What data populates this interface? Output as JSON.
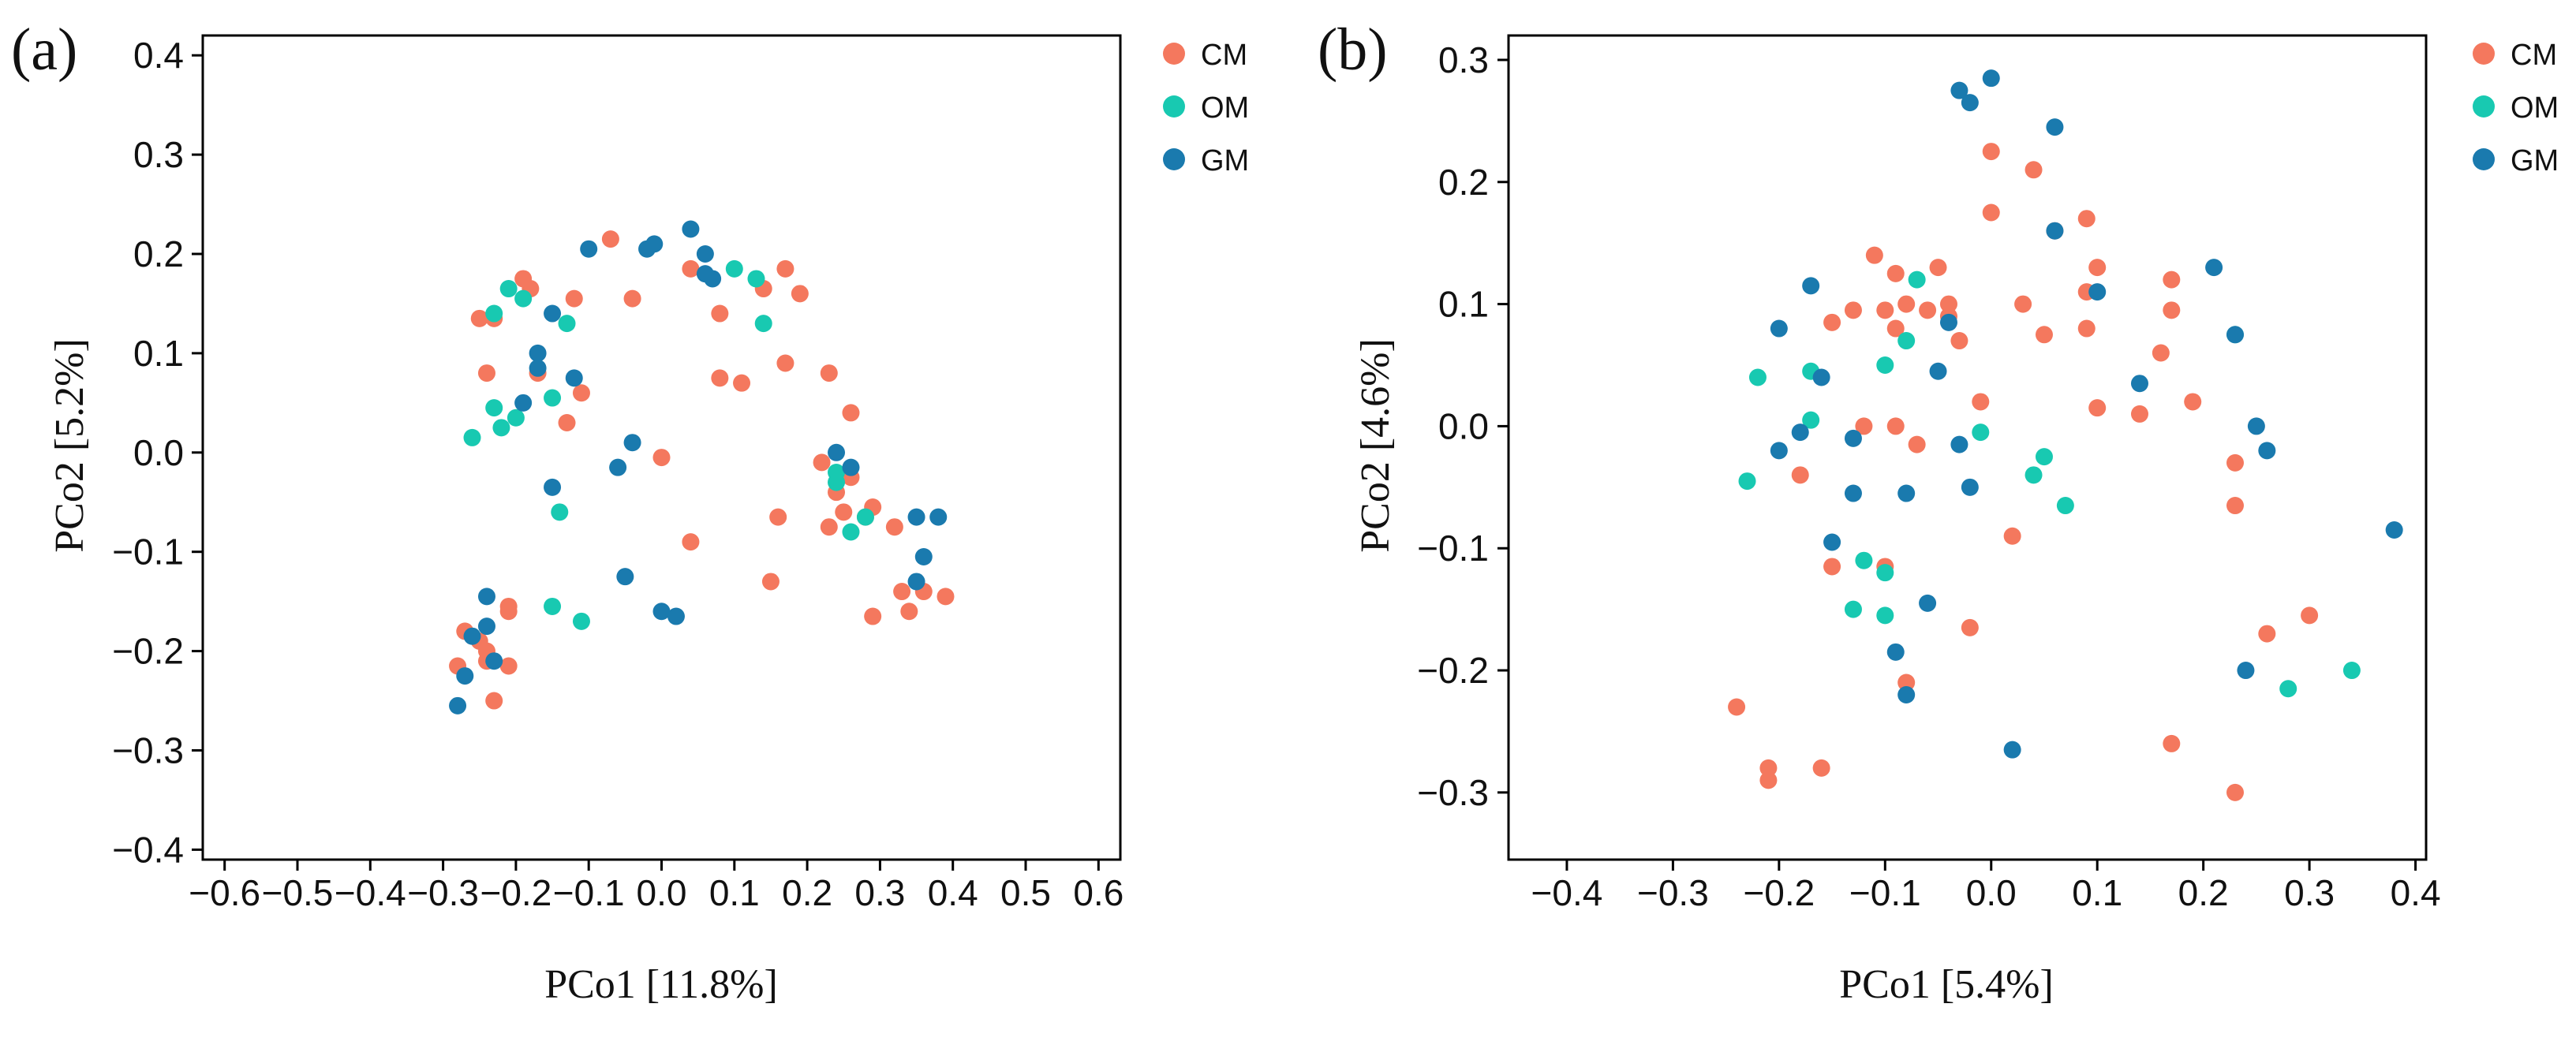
{
  "colors": {
    "CM": "#F4785E",
    "OM": "#18C9B1",
    "GM": "#1A7AAE"
  },
  "legend": [
    {
      "name": "CM",
      "color": "#F4785E"
    },
    {
      "name": "OM",
      "color": "#18C9B1"
    },
    {
      "name": "GM",
      "color": "#1A7AAE"
    }
  ],
  "chart_data": [
    {
      "type": "scatter",
      "panel_label": "(a)",
      "xlabel": "PCo1 [11.8%]",
      "ylabel": "PCo2 [5.2%]",
      "xlim": [
        -0.63,
        0.63
      ],
      "ylim": [
        -0.41,
        0.42
      ],
      "xticks": [
        -0.6,
        -0.5,
        -0.4,
        -0.3,
        -0.2,
        -0.1,
        0.0,
        0.1,
        0.2,
        0.3,
        0.4,
        0.5,
        0.6
      ],
      "xtick_labels": [
        "−0.6",
        "−0.5",
        "−0.4",
        "−0.3",
        "−0.2",
        "−0.1",
        "0.0",
        "0.1",
        "0.2",
        "0.3",
        "0.4",
        "0.5",
        "0.6"
      ],
      "yticks": [
        -0.4,
        -0.3,
        -0.2,
        -0.1,
        0.0,
        0.1,
        0.2,
        0.3,
        0.4
      ],
      "ytick_labels": [
        "−0.4",
        "−0.3",
        "−0.2",
        "−0.1",
        "0.0",
        "0.1",
        "0.2",
        "0.3",
        "0.4"
      ],
      "series": [
        {
          "name": "CM",
          "points": [
            [
              -0.07,
              0.215
            ],
            [
              -0.04,
              0.155
            ],
            [
              -0.12,
              0.155
            ],
            [
              -0.19,
              0.175
            ],
            [
              -0.18,
              0.165
            ],
            [
              -0.23,
              0.135
            ],
            [
              -0.25,
              0.135
            ],
            [
              -0.24,
              0.08
            ],
            [
              -0.17,
              0.08
            ],
            [
              -0.11,
              0.06
            ],
            [
              -0.13,
              0.03
            ],
            [
              0.04,
              0.185
            ],
            [
              0.08,
              0.14
            ],
            [
              0.14,
              0.165
            ],
            [
              0.17,
              0.185
            ],
            [
              0.19,
              0.16
            ],
            [
              0.08,
              0.075
            ],
            [
              0.11,
              0.07
            ],
            [
              0.17,
              0.09
            ],
            [
              0.23,
              0.08
            ],
            [
              0.26,
              0.04
            ],
            [
              0.22,
              -0.01
            ],
            [
              0.0,
              -0.005
            ],
            [
              0.24,
              -0.04
            ],
            [
              0.25,
              -0.06
            ],
            [
              0.26,
              -0.025
            ],
            [
              0.28,
              -0.065
            ],
            [
              0.29,
              -0.055
            ],
            [
              0.23,
              -0.075
            ],
            [
              0.32,
              -0.075
            ],
            [
              0.16,
              -0.065
            ],
            [
              0.04,
              -0.09
            ],
            [
              0.15,
              -0.13
            ],
            [
              0.33,
              -0.14
            ],
            [
              0.36,
              -0.14
            ],
            [
              0.39,
              -0.145
            ],
            [
              0.34,
              -0.16
            ],
            [
              0.29,
              -0.165
            ],
            [
              -0.27,
              -0.18
            ],
            [
              -0.25,
              -0.19
            ],
            [
              -0.24,
              -0.2
            ],
            [
              -0.24,
              -0.21
            ],
            [
              -0.21,
              -0.16
            ],
            [
              -0.21,
              -0.155
            ],
            [
              -0.21,
              -0.215
            ],
            [
              -0.28,
              -0.215
            ],
            [
              -0.23,
              -0.25
            ]
          ]
        },
        {
          "name": "OM",
          "points": [
            [
              -0.23,
              0.14
            ],
            [
              -0.21,
              0.165
            ],
            [
              -0.19,
              0.155
            ],
            [
              -0.13,
              0.13
            ],
            [
              0.1,
              0.185
            ],
            [
              0.13,
              0.175
            ],
            [
              0.14,
              0.13
            ],
            [
              -0.23,
              0.045
            ],
            [
              -0.2,
              0.035
            ],
            [
              -0.22,
              0.025
            ],
            [
              -0.26,
              0.015
            ],
            [
              -0.15,
              0.055
            ],
            [
              -0.14,
              -0.06
            ],
            [
              0.24,
              -0.02
            ],
            [
              0.24,
              -0.03
            ],
            [
              0.26,
              -0.08
            ],
            [
              0.28,
              -0.065
            ],
            [
              -0.15,
              -0.155
            ],
            [
              -0.11,
              -0.17
            ]
          ]
        },
        {
          "name": "GM",
          "points": [
            [
              -0.1,
              0.205
            ],
            [
              -0.02,
              0.205
            ],
            [
              -0.01,
              0.21
            ],
            [
              0.04,
              0.225
            ],
            [
              0.06,
              0.2
            ],
            [
              0.06,
              0.18
            ],
            [
              0.07,
              0.175
            ],
            [
              -0.17,
              0.1
            ],
            [
              -0.17,
              0.085
            ],
            [
              -0.12,
              0.075
            ],
            [
              -0.19,
              0.05
            ],
            [
              -0.15,
              0.14
            ],
            [
              -0.04,
              0.01
            ],
            [
              -0.06,
              -0.015
            ],
            [
              -0.15,
              -0.035
            ],
            [
              0.24,
              0.0
            ],
            [
              0.26,
              -0.015
            ],
            [
              0.35,
              -0.065
            ],
            [
              0.38,
              -0.065
            ],
            [
              0.36,
              -0.105
            ],
            [
              0.35,
              -0.13
            ],
            [
              -0.05,
              -0.125
            ],
            [
              0.0,
              -0.16
            ],
            [
              0.02,
              -0.165
            ],
            [
              -0.24,
              -0.145
            ],
            [
              -0.24,
              -0.175
            ],
            [
              -0.23,
              -0.21
            ],
            [
              -0.26,
              -0.185
            ],
            [
              -0.27,
              -0.225
            ],
            [
              -0.28,
              -0.255
            ]
          ]
        }
      ]
    },
    {
      "type": "scatter",
      "panel_label": "(b)",
      "xlabel": "PCo1 [5.4%]",
      "ylabel": "PCo2 [4.6%]",
      "xlim": [
        -0.455,
        0.41
      ],
      "ylim": [
        -0.355,
        0.32
      ],
      "xticks": [
        -0.4,
        -0.3,
        -0.2,
        -0.1,
        0.0,
        0.1,
        0.2,
        0.3,
        0.4
      ],
      "xtick_labels": [
        "−0.4",
        "−0.3",
        "−0.2",
        "−0.1",
        "0.0",
        "0.1",
        "0.2",
        "0.3",
        "0.4"
      ],
      "yticks": [
        -0.3,
        -0.2,
        -0.1,
        0.0,
        0.1,
        0.2,
        0.3
      ],
      "ytick_labels": [
        "−0.3",
        "−0.2",
        "−0.1",
        "0.0",
        "0.1",
        "0.2",
        "0.3"
      ],
      "series": [
        {
          "name": "CM",
          "points": [
            [
              0.04,
              0.21
            ],
            [
              0.0,
              0.225
            ],
            [
              0.0,
              0.175
            ],
            [
              0.06,
              0.16
            ],
            [
              0.09,
              0.17
            ],
            [
              -0.11,
              0.14
            ],
            [
              -0.09,
              0.125
            ],
            [
              -0.05,
              0.13
            ],
            [
              0.03,
              0.1
            ],
            [
              0.05,
              0.075
            ],
            [
              -0.08,
              0.1
            ],
            [
              -0.13,
              0.095
            ],
            [
              -0.1,
              0.095
            ],
            [
              -0.09,
              0.08
            ],
            [
              -0.06,
              0.095
            ],
            [
              -0.04,
              0.1
            ],
            [
              -0.04,
              0.09
            ],
            [
              -0.03,
              0.07
            ],
            [
              -0.15,
              0.085
            ],
            [
              0.09,
              0.11
            ],
            [
              0.1,
              0.13
            ],
            [
              0.09,
              0.08
            ],
            [
              0.17,
              0.12
            ],
            [
              0.17,
              0.095
            ],
            [
              0.16,
              0.06
            ],
            [
              0.19,
              0.02
            ],
            [
              0.1,
              0.015
            ],
            [
              0.14,
              0.01
            ],
            [
              -0.12,
              0.0
            ],
            [
              -0.09,
              0.0
            ],
            [
              -0.07,
              -0.015
            ],
            [
              -0.01,
              0.02
            ],
            [
              -0.18,
              -0.04
            ],
            [
              0.23,
              -0.03
            ],
            [
              0.23,
              -0.065
            ],
            [
              0.02,
              -0.09
            ],
            [
              -0.15,
              -0.115
            ],
            [
              -0.1,
              -0.115
            ],
            [
              -0.02,
              -0.165
            ],
            [
              0.3,
              -0.155
            ],
            [
              0.26,
              -0.17
            ],
            [
              -0.08,
              -0.21
            ],
            [
              -0.24,
              -0.23
            ],
            [
              0.17,
              -0.26
            ],
            [
              -0.21,
              -0.28
            ],
            [
              -0.21,
              -0.29
            ],
            [
              -0.16,
              -0.28
            ],
            [
              0.23,
              -0.3
            ]
          ]
        },
        {
          "name": "OM",
          "points": [
            [
              -0.07,
              0.12
            ],
            [
              -0.08,
              0.07
            ],
            [
              -0.1,
              0.05
            ],
            [
              -0.17,
              0.045
            ],
            [
              -0.22,
              0.04
            ],
            [
              -0.17,
              0.005
            ],
            [
              -0.01,
              -0.005
            ],
            [
              -0.23,
              -0.045
            ],
            [
              0.05,
              -0.025
            ],
            [
              0.04,
              -0.04
            ],
            [
              0.07,
              -0.065
            ],
            [
              -0.12,
              -0.11
            ],
            [
              -0.1,
              -0.12
            ],
            [
              -0.13,
              -0.15
            ],
            [
              -0.1,
              -0.155
            ],
            [
              0.23,
              0.075
            ],
            [
              0.34,
              -0.2
            ],
            [
              0.28,
              -0.215
            ]
          ]
        },
        {
          "name": "GM",
          "points": [
            [
              -0.03,
              0.275
            ],
            [
              -0.02,
              0.265
            ],
            [
              0.0,
              0.285
            ],
            [
              0.06,
              0.245
            ],
            [
              0.06,
              0.16
            ],
            [
              -0.17,
              0.115
            ],
            [
              -0.2,
              0.08
            ],
            [
              -0.04,
              0.085
            ],
            [
              -0.16,
              0.04
            ],
            [
              -0.05,
              0.045
            ],
            [
              0.23,
              0.075
            ],
            [
              0.21,
              0.13
            ],
            [
              0.1,
              0.11
            ],
            [
              0.14,
              0.035
            ],
            [
              -0.18,
              -0.005
            ],
            [
              -0.2,
              -0.02
            ],
            [
              -0.13,
              -0.01
            ],
            [
              -0.03,
              -0.015
            ],
            [
              0.25,
              0.0
            ],
            [
              0.26,
              -0.02
            ],
            [
              -0.13,
              -0.055
            ],
            [
              -0.08,
              -0.055
            ],
            [
              -0.02,
              -0.05
            ],
            [
              -0.15,
              -0.095
            ],
            [
              -0.06,
              -0.145
            ],
            [
              -0.09,
              -0.185
            ],
            [
              -0.08,
              -0.22
            ],
            [
              0.24,
              -0.2
            ],
            [
              0.02,
              -0.265
            ],
            [
              0.38,
              -0.085
            ]
          ]
        }
      ]
    }
  ]
}
